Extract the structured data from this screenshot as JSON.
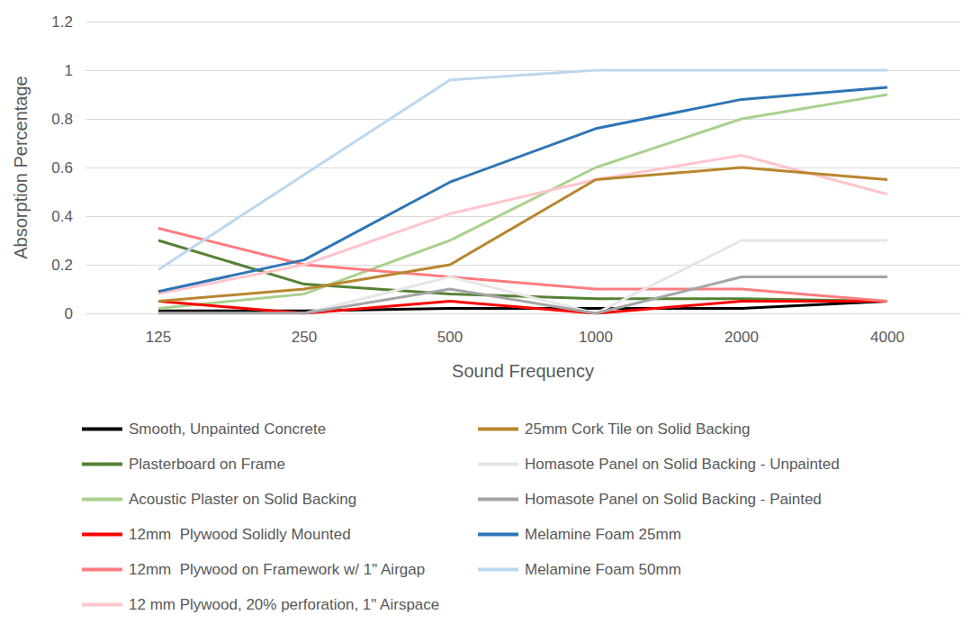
{
  "chart_data": {
    "type": "line",
    "x_label": "Sound Frequency",
    "y_label": "Absorption Percentage",
    "categories": [
      "125",
      "250",
      "500",
      "1000",
      "2000",
      "4000"
    ],
    "ylim": [
      0,
      1.2
    ],
    "yticks": [
      0,
      0.2,
      0.4,
      0.6,
      0.8,
      1,
      1.2
    ],
    "grid": true,
    "legend": "bottom",
    "series": [
      {
        "name": "Smooth, Unpainted Concrete",
        "color": "#000000",
        "values": [
          0.01,
          0.01,
          0.02,
          0.02,
          0.02,
          0.05
        ]
      },
      {
        "name": "Plasterboard on Frame",
        "color": "#548235",
        "values": [
          0.3,
          0.12,
          0.08,
          0.06,
          0.06,
          0.05
        ]
      },
      {
        "name": "Acoustic Plaster on Solid Backing",
        "color": "#a9d18e",
        "values": [
          0.02,
          0.08,
          0.3,
          0.6,
          0.8,
          0.9
        ]
      },
      {
        "name": "12mm  Plywood Solidly Mounted",
        "color": "#ff0000",
        "values": [
          0.05,
          0.0,
          0.05,
          0.0,
          0.05,
          0.05
        ]
      },
      {
        "name": "12mm  Plywood on Framework w/ 1\" Airgap",
        "color": "#ff7c80",
        "values": [
          0.35,
          0.2,
          0.15,
          0.1,
          0.1,
          0.05
        ]
      },
      {
        "name": "12 mm Plywood, 20% perforation, 1\" Airspace",
        "color": "#ffc5cc",
        "values": [
          0.08,
          0.2,
          0.41,
          0.55,
          0.65,
          0.49
        ]
      },
      {
        "name": "25mm Cork Tile on Solid Backing",
        "color": "#b8862e",
        "values": [
          0.05,
          0.1,
          0.2,
          0.55,
          0.6,
          0.55
        ]
      },
      {
        "name": "Homasote Panel on Solid Backing - Unpainted",
        "color": "#e7e6e6",
        "values": [
          0.0,
          0.0,
          0.15,
          0.0,
          0.3,
          0.3
        ]
      },
      {
        "name": "Homasote Panel on Solid Backing - Painted",
        "color": "#a5a5a5",
        "values": [
          0.0,
          0.0,
          0.1,
          0.0,
          0.15,
          0.15
        ]
      },
      {
        "name": "Melamine Foam 25mm",
        "color": "#2e75b6",
        "values": [
          0.09,
          0.22,
          0.54,
          0.76,
          0.88,
          0.93
        ]
      },
      {
        "name": "Melamine Foam 50mm",
        "color": "#bdd7ee",
        "values": [
          0.18,
          0.57,
          0.96,
          1.0,
          1.0,
          1.0
        ]
      }
    ]
  }
}
